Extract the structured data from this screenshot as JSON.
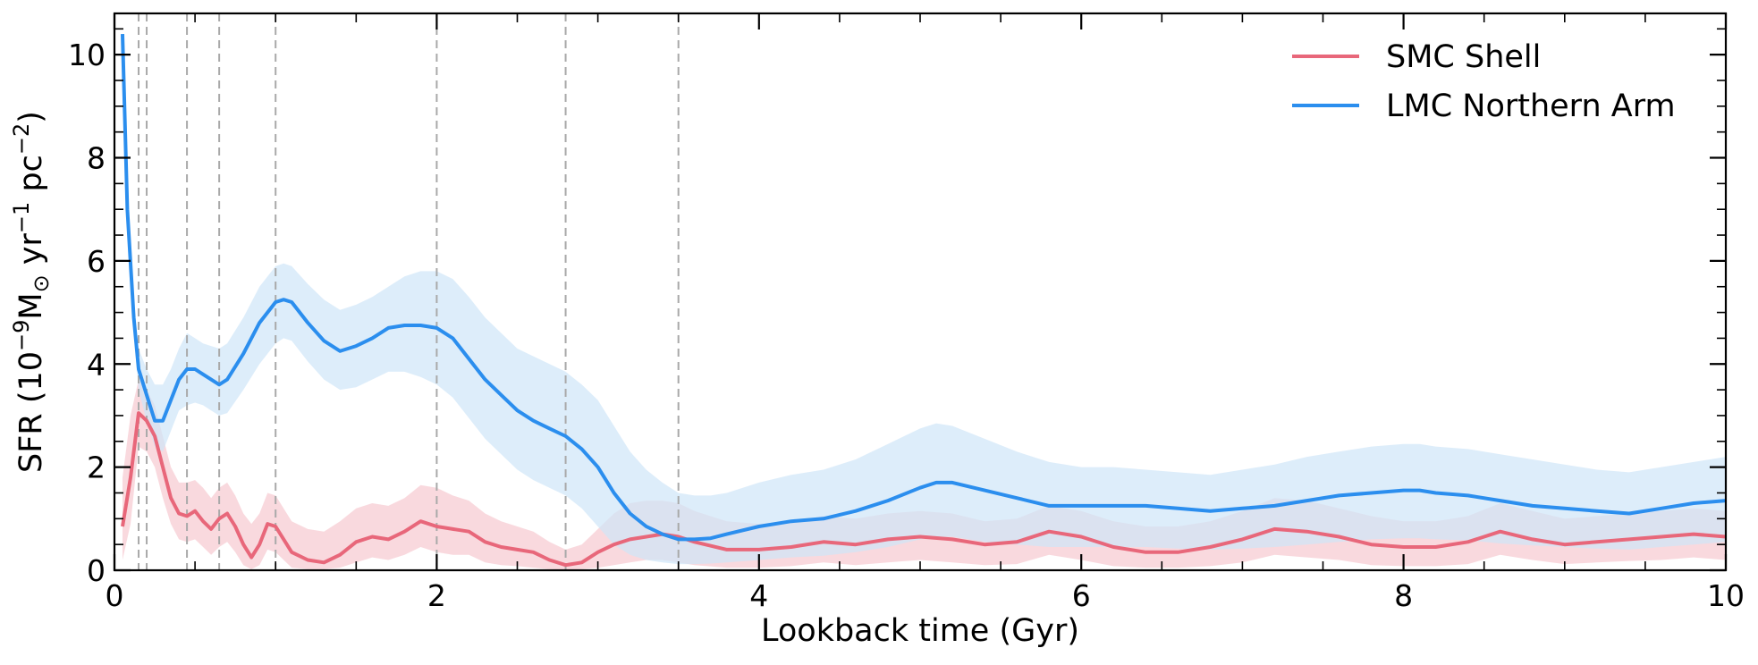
{
  "chart_data": {
    "type": "line",
    "xlabel": "Lookback time (Gyr)",
    "ylabel": "SFR (10",
    "ylabel_parts": {
      "base": "SFR (10",
      "exp1": "−9",
      "mid": "M",
      "sun": "⊙",
      "yr": " yr",
      "exp2": "−1",
      "pc": " pc",
      "exp3": "−2",
      "close": ")"
    },
    "xlim": [
      0,
      10
    ],
    "ylim": [
      0,
      10.8
    ],
    "x_ticks": [
      0,
      2,
      4,
      6,
      8,
      10
    ],
    "x_tick_labels": [
      "0",
      "2",
      "4",
      "6",
      "8",
      "10"
    ],
    "y_ticks": [
      0,
      2,
      4,
      6,
      8,
      10
    ],
    "y_tick_labels": [
      "0",
      "2",
      "4",
      "6",
      "8",
      "10"
    ],
    "grid": false,
    "legend_placement": "top-right",
    "vertical_reference_lines": [
      0.15,
      0.2,
      0.45,
      0.65,
      1.0,
      2.0,
      2.8,
      3.5
    ],
    "series": [
      {
        "name": "SMC Shell",
        "color": "#e8677a",
        "band_color": "#f7c9d0",
        "x": [
          0.05,
          0.1,
          0.15,
          0.2,
          0.25,
          0.3,
          0.35,
          0.4,
          0.45,
          0.5,
          0.55,
          0.6,
          0.65,
          0.7,
          0.75,
          0.8,
          0.85,
          0.9,
          0.95,
          1.0,
          1.1,
          1.2,
          1.3,
          1.4,
          1.5,
          1.6,
          1.7,
          1.8,
          1.9,
          2.0,
          2.1,
          2.2,
          2.3,
          2.4,
          2.5,
          2.6,
          2.7,
          2.8,
          2.9,
          3.0,
          3.1,
          3.2,
          3.3,
          3.4,
          3.5,
          3.6,
          3.8,
          4.0,
          4.2,
          4.4,
          4.6,
          4.8,
          5.0,
          5.2,
          5.4,
          5.6,
          5.8,
          6.0,
          6.2,
          6.4,
          6.6,
          6.8,
          7.0,
          7.2,
          7.4,
          7.6,
          7.8,
          8.0,
          8.2,
          8.4,
          8.6,
          8.8,
          9.0,
          9.2,
          9.4,
          9.6,
          9.8,
          10.0
        ],
        "y": [
          0.85,
          1.8,
          3.05,
          2.9,
          2.6,
          2.0,
          1.4,
          1.1,
          1.05,
          1.15,
          0.95,
          0.8,
          1.0,
          1.1,
          0.85,
          0.5,
          0.25,
          0.5,
          0.9,
          0.85,
          0.35,
          0.2,
          0.15,
          0.3,
          0.55,
          0.65,
          0.6,
          0.75,
          0.95,
          0.85,
          0.8,
          0.75,
          0.55,
          0.45,
          0.4,
          0.35,
          0.2,
          0.1,
          0.15,
          0.35,
          0.5,
          0.6,
          0.65,
          0.7,
          0.65,
          0.55,
          0.4,
          0.4,
          0.45,
          0.55,
          0.5,
          0.6,
          0.65,
          0.6,
          0.5,
          0.55,
          0.75,
          0.65,
          0.45,
          0.35,
          0.35,
          0.45,
          0.6,
          0.8,
          0.75,
          0.65,
          0.5,
          0.45,
          0.45,
          0.55,
          0.75,
          0.6,
          0.5,
          0.55,
          0.6,
          0.65,
          0.7,
          0.65
        ],
        "upper": [
          1.8,
          3.0,
          3.7,
          3.5,
          3.2,
          2.6,
          2.0,
          1.7,
          1.7,
          1.75,
          1.6,
          1.4,
          1.6,
          1.7,
          1.45,
          1.1,
          0.9,
          1.1,
          1.5,
          1.45,
          0.95,
          0.8,
          0.75,
          0.95,
          1.2,
          1.3,
          1.25,
          1.4,
          1.65,
          1.6,
          1.45,
          1.35,
          1.1,
          0.95,
          0.85,
          0.75,
          0.55,
          0.4,
          0.5,
          0.8,
          1.1,
          1.3,
          1.35,
          1.35,
          1.3,
          1.15,
          0.95,
          0.9,
          0.95,
          1.05,
          1.0,
          1.1,
          1.15,
          1.1,
          0.95,
          1.0,
          1.25,
          1.15,
          0.95,
          0.85,
          0.85,
          0.95,
          1.15,
          1.4,
          1.35,
          1.2,
          1.05,
          0.95,
          0.95,
          1.05,
          1.3,
          1.15,
          1.0,
          1.05,
          1.1,
          1.15,
          1.2,
          1.15
        ],
        "lower": [
          0.2,
          0.9,
          2.4,
          2.3,
          2.0,
          1.4,
          0.9,
          0.6,
          0.55,
          0.6,
          0.45,
          0.3,
          0.45,
          0.55,
          0.35,
          0.1,
          0.02,
          0.1,
          0.4,
          0.35,
          0.05,
          0.02,
          0.02,
          0.05,
          0.15,
          0.25,
          0.2,
          0.3,
          0.45,
          0.35,
          0.3,
          0.3,
          0.15,
          0.1,
          0.08,
          0.05,
          0.02,
          0.01,
          0.02,
          0.05,
          0.1,
          0.15,
          0.2,
          0.2,
          0.15,
          0.1,
          0.05,
          0.05,
          0.08,
          0.15,
          0.1,
          0.15,
          0.2,
          0.15,
          0.1,
          0.12,
          0.3,
          0.2,
          0.08,
          0.05,
          0.05,
          0.08,
          0.15,
          0.3,
          0.25,
          0.2,
          0.1,
          0.08,
          0.08,
          0.12,
          0.3,
          0.2,
          0.12,
          0.15,
          0.18,
          0.2,
          0.25,
          0.2
        ]
      },
      {
        "name": "LMC Northern Arm",
        "color": "#2b8eee",
        "band_color": "#cfe5f8",
        "x": [
          0.05,
          0.08,
          0.12,
          0.15,
          0.2,
          0.25,
          0.3,
          0.35,
          0.4,
          0.45,
          0.5,
          0.55,
          0.6,
          0.65,
          0.7,
          0.8,
          0.9,
          1.0,
          1.05,
          1.1,
          1.2,
          1.3,
          1.4,
          1.5,
          1.6,
          1.7,
          1.8,
          1.9,
          2.0,
          2.1,
          2.2,
          2.3,
          2.4,
          2.5,
          2.6,
          2.7,
          2.8,
          2.9,
          3.0,
          3.1,
          3.2,
          3.3,
          3.4,
          3.5,
          3.6,
          3.7,
          3.8,
          4.0,
          4.2,
          4.4,
          4.6,
          4.8,
          5.0,
          5.1,
          5.2,
          5.4,
          5.6,
          5.8,
          6.0,
          6.2,
          6.4,
          6.6,
          6.8,
          7.0,
          7.2,
          7.4,
          7.6,
          7.8,
          8.0,
          8.1,
          8.2,
          8.4,
          8.6,
          8.8,
          9.0,
          9.2,
          9.4,
          9.6,
          9.8,
          10.0
        ],
        "y": [
          10.4,
          7.0,
          4.9,
          3.9,
          3.4,
          2.9,
          2.9,
          3.3,
          3.7,
          3.9,
          3.9,
          3.8,
          3.7,
          3.6,
          3.7,
          4.2,
          4.8,
          5.2,
          5.25,
          5.2,
          4.8,
          4.45,
          4.25,
          4.35,
          4.5,
          4.7,
          4.75,
          4.75,
          4.7,
          4.5,
          4.1,
          3.7,
          3.4,
          3.1,
          2.9,
          2.75,
          2.6,
          2.35,
          2.0,
          1.5,
          1.1,
          0.85,
          0.7,
          0.6,
          0.6,
          0.62,
          0.7,
          0.85,
          0.95,
          1.0,
          1.15,
          1.35,
          1.6,
          1.7,
          1.7,
          1.55,
          1.4,
          1.25,
          1.25,
          1.25,
          1.25,
          1.2,
          1.15,
          1.2,
          1.25,
          1.35,
          1.45,
          1.5,
          1.55,
          1.55,
          1.5,
          1.45,
          1.35,
          1.25,
          1.2,
          1.15,
          1.1,
          1.2,
          1.3,
          1.35
        ],
        "upper": [
          10.4,
          7.2,
          5.2,
          4.3,
          3.9,
          3.6,
          3.6,
          3.9,
          4.3,
          4.6,
          4.5,
          4.4,
          4.35,
          4.3,
          4.4,
          4.9,
          5.5,
          5.9,
          5.95,
          5.9,
          5.55,
          5.25,
          5.05,
          5.15,
          5.3,
          5.5,
          5.7,
          5.8,
          5.8,
          5.65,
          5.3,
          4.9,
          4.6,
          4.3,
          4.15,
          4.0,
          3.85,
          3.6,
          3.3,
          2.8,
          2.3,
          1.95,
          1.7,
          1.5,
          1.45,
          1.45,
          1.5,
          1.7,
          1.85,
          1.95,
          2.15,
          2.45,
          2.75,
          2.85,
          2.8,
          2.55,
          2.3,
          2.1,
          2.0,
          2.0,
          1.95,
          1.9,
          1.85,
          1.95,
          2.05,
          2.2,
          2.3,
          2.4,
          2.45,
          2.45,
          2.4,
          2.35,
          2.25,
          2.15,
          2.05,
          1.95,
          1.9,
          2.0,
          2.1,
          2.2
        ],
        "lower": [
          10.3,
          6.8,
          4.6,
          3.5,
          2.9,
          2.4,
          2.3,
          2.7,
          3.1,
          3.2,
          3.25,
          3.2,
          3.1,
          3.0,
          3.05,
          3.5,
          4.0,
          4.4,
          4.5,
          4.45,
          4.05,
          3.7,
          3.5,
          3.55,
          3.7,
          3.85,
          3.85,
          3.75,
          3.6,
          3.35,
          2.95,
          2.55,
          2.25,
          1.95,
          1.75,
          1.6,
          1.45,
          1.2,
          0.85,
          0.5,
          0.3,
          0.2,
          0.15,
          0.12,
          0.12,
          0.13,
          0.15,
          0.2,
          0.25,
          0.28,
          0.35,
          0.45,
          0.6,
          0.65,
          0.65,
          0.55,
          0.5,
          0.45,
          0.45,
          0.45,
          0.45,
          0.42,
          0.4,
          0.42,
          0.45,
          0.5,
          0.55,
          0.6,
          0.62,
          0.62,
          0.6,
          0.58,
          0.52,
          0.48,
          0.45,
          0.42,
          0.4,
          0.45,
          0.5,
          0.55
        ]
      }
    ]
  }
}
